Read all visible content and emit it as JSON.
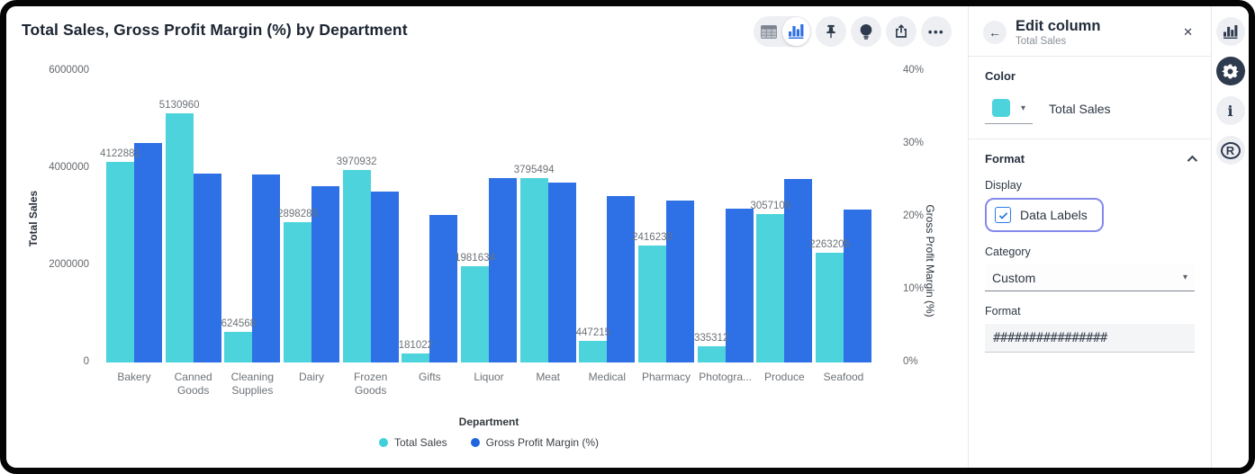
{
  "header": {
    "title": "Total Sales, Gross Profit Margin (%) by Department",
    "toolbar": {
      "view_toggle": [
        "table-view",
        "chart-view"
      ],
      "active_view": "chart-view",
      "buttons": [
        "pin",
        "explore",
        "share",
        "more-options"
      ]
    }
  },
  "chart_data": {
    "type": "bar",
    "title": "Total Sales, Gross Profit Margin (%) by Department",
    "categories": [
      "Bakery",
      "Canned Goods",
      "Cleaning Supplies",
      "Dairy",
      "Frozen Goods",
      "Gifts",
      "Liquor",
      "Meat",
      "Medical",
      "Pharmacy",
      "Photogra...",
      "Produce",
      "Seafood"
    ],
    "category_axis_labels": [
      "Bakery",
      "Canned\nGoods",
      "Cleaning\nSupplies",
      "Dairy",
      "Frozen\nGoods",
      "Gifts",
      "Liquor",
      "Meat",
      "Medical",
      "Pharmacy",
      "Photogra...",
      "Produce",
      "Seafood"
    ],
    "series": [
      {
        "name": "Total Sales",
        "axis": "left",
        "color": "#4dd3dc",
        "data_labels": true,
        "values": [
          4122881,
          5130960,
          624568,
          2898285,
          3970932,
          181022,
          1981634,
          3795494,
          447215,
          2416230,
          335312,
          3057105,
          2263205
        ]
      },
      {
        "name": "Gross Profit Margin (%)",
        "axis": "right",
        "color": "#2e70e5",
        "data_labels": false,
        "values": [
          30.1,
          25.9,
          25.8,
          24.2,
          23.5,
          20.2,
          25.3,
          24.7,
          22.9,
          22.2,
          21.1,
          25.2,
          21.0
        ]
      }
    ],
    "xlabel": "Department",
    "left_axis": {
      "label": "Total Sales",
      "ticks": [
        "0",
        "2000000",
        "4000000",
        "6000000"
      ],
      "max": 6000000
    },
    "right_axis": {
      "label": "Gross Profit Margin (%)",
      "ticks": [
        "0%",
        "10%",
        "20%",
        "30%",
        "40%"
      ],
      "max": 40
    },
    "legend": [
      {
        "label": "Total Sales",
        "color": "#3fd0dc"
      },
      {
        "label": "Gross Profit Margin (%)",
        "color": "#2065e0"
      }
    ],
    "legend_position": "bottom",
    "grid": false
  },
  "panel": {
    "title": "Edit column",
    "subtitle": "Total Sales",
    "color_section": {
      "label": "Color",
      "swatch_color": "#4dd3dc",
      "series_label": "Total Sales"
    },
    "format_section": {
      "label": "Format",
      "display_label": "Display",
      "data_labels_checkbox": {
        "label": "Data Labels",
        "checked": true,
        "highlighted": true
      },
      "category_label": "Category",
      "category_value": "Custom",
      "format_label": "Format",
      "format_value": "################"
    }
  },
  "rail": {
    "items": [
      {
        "icon": "chart-icon",
        "active": false
      },
      {
        "icon": "gear-icon",
        "active": true
      },
      {
        "icon": "info-icon",
        "active": false
      },
      {
        "icon": "r-language-icon",
        "active": false
      }
    ]
  }
}
